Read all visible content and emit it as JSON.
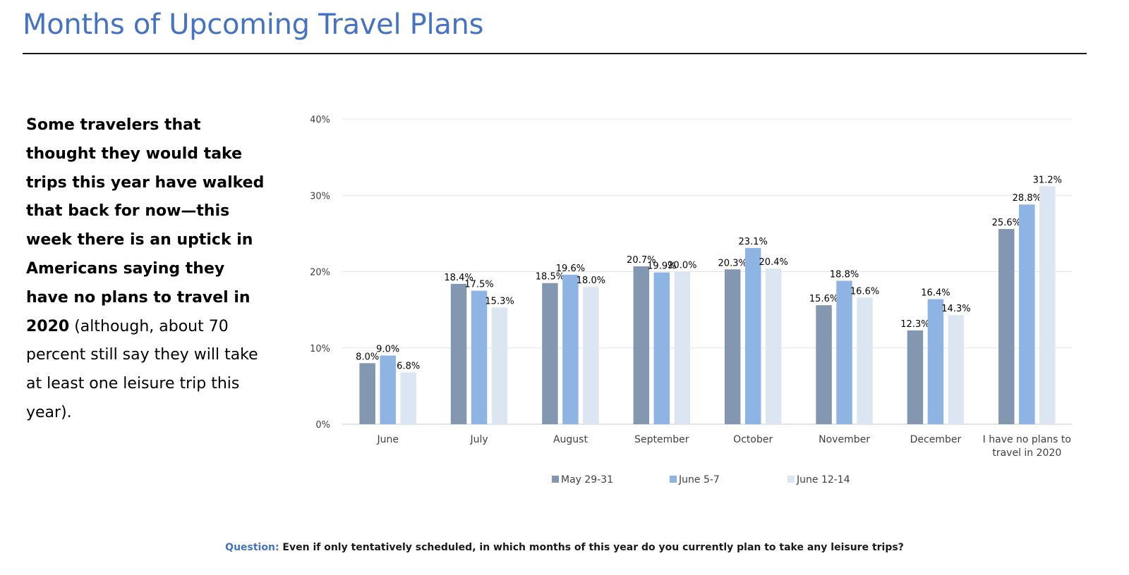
{
  "page": {
    "title": "Months of Upcoming Travel Plans",
    "blurb_bold": "Some travelers that thought they would take trips this year have walked that back for now—this week there is an uptick in Americans saying they have no plans to travel in 2020",
    "blurb_rest": " (although, about 70 percent still say they will take at least one leisure trip this year).",
    "question_label": "Question:",
    "question_text": " Even if only tentatively scheduled, in which months of this year do you currently plan to take any leisure trips?"
  },
  "chart_data": {
    "type": "bar",
    "title": "",
    "xlabel": "",
    "ylabel": "",
    "ylim": [
      0,
      40
    ],
    "yticks": [
      "0%",
      "10%",
      "20%",
      "30%",
      "40%"
    ],
    "grid": true,
    "legend_position": "bottom",
    "categories": [
      "June",
      "July",
      "August",
      "September",
      "October",
      "November",
      "December",
      "I have no plans to travel in 2020"
    ],
    "category_lines": [
      [
        "June"
      ],
      [
        "July"
      ],
      [
        "August"
      ],
      [
        "September"
      ],
      [
        "October"
      ],
      [
        "November"
      ],
      [
        "December"
      ],
      [
        "I have no plans to",
        "travel in 2020"
      ]
    ],
    "series": [
      {
        "name": "May 29-31",
        "color": "#8497b0",
        "values": [
          8.0,
          18.4,
          18.5,
          20.7,
          20.3,
          15.6,
          12.3,
          25.6
        ],
        "labels": [
          "8.0%",
          "18.4%",
          "18.5%",
          "20.7%",
          "20.3%",
          "15.6%",
          "12.3%",
          "25.6%"
        ]
      },
      {
        "name": "June 5-7",
        "color": "#8eb4e3",
        "values": [
          9.0,
          17.5,
          19.6,
          19.9,
          23.1,
          18.8,
          16.4,
          28.8
        ],
        "labels": [
          "9.0%",
          "17.5%",
          "19.6%",
          "19.9%",
          "23.1%",
          "18.8%",
          "16.4%",
          "28.8%"
        ]
      },
      {
        "name": "June 12-14",
        "color": "#dce6f2",
        "values": [
          6.8,
          15.3,
          18.0,
          20.0,
          20.4,
          16.6,
          14.3,
          31.2
        ],
        "labels": [
          "6.8%",
          "15.3%",
          "18.0%",
          "20.0%",
          "20.4%",
          "16.6%",
          "14.3%",
          "31.2%"
        ]
      }
    ]
  }
}
